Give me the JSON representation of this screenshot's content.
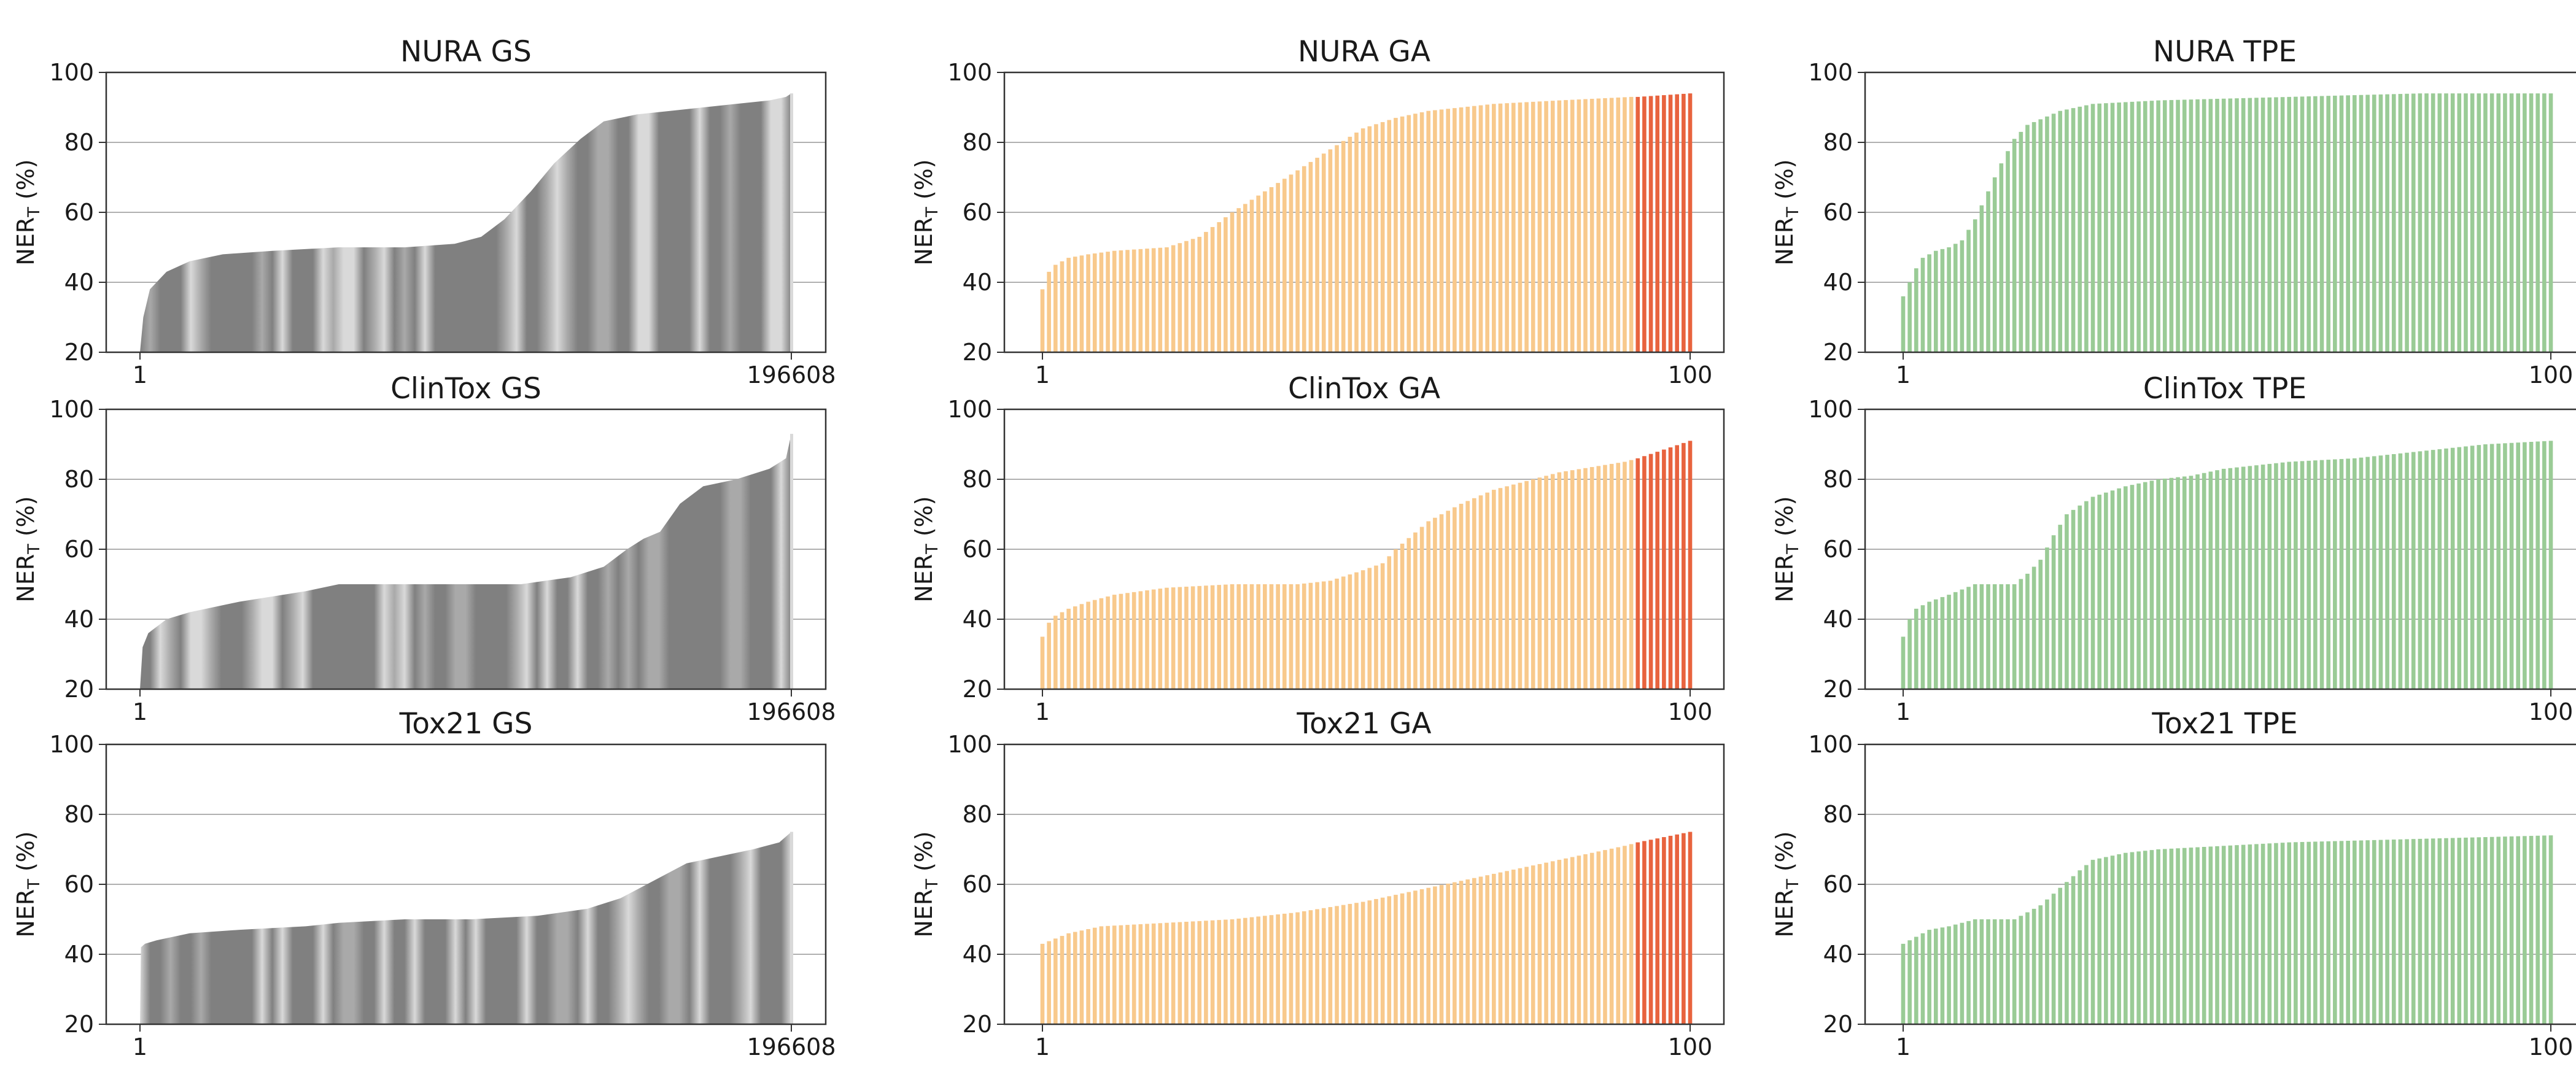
{
  "colors": {
    "gs_dark": "#808080",
    "gs_light": "#d9d9d9",
    "ga_main": "#f8c98c",
    "ga_top": "#e8633e",
    "tpe": "#9acb96",
    "grid": "#b0b0b0",
    "axis": "#333333"
  },
  "chart_data": [
    {
      "id": "nura-gs",
      "type": "area",
      "method": "GS",
      "title": "NURA GS",
      "ylabel": "NER_T (%)",
      "ylim": [
        20,
        100
      ],
      "yticks": [
        20,
        40,
        60,
        80,
        100
      ],
      "xlim": [
        1,
        196608
      ],
      "xtick_labels": [
        "1",
        "196608"
      ],
      "x": [
        1,
        1000,
        3000,
        8000,
        15000,
        25000,
        40000,
        60000,
        80000,
        95000,
        103000,
        110000,
        118000,
        125000,
        133000,
        140000,
        150000,
        160000,
        170000,
        180000,
        190000,
        195000,
        196608
      ],
      "values": [
        20,
        30,
        38,
        43,
        46,
        48,
        49,
        50,
        50,
        51,
        53,
        58,
        66,
        74,
        81,
        86,
        88,
        89,
        90,
        91,
        92,
        93,
        94
      ]
    },
    {
      "id": "nura-ga",
      "type": "bar",
      "method": "GA",
      "title": "NURA GA",
      "ylabel": "NER_T (%)",
      "ylim": [
        20,
        100
      ],
      "yticks": [
        20,
        40,
        60,
        80,
        100
      ],
      "n": 100,
      "highlight_from": 92,
      "xtick_labels": [
        "1",
        "100"
      ],
      "x": [
        1,
        2,
        3,
        5,
        8,
        12,
        20,
        25,
        30,
        35,
        40,
        45,
        50,
        55,
        60,
        65,
        70,
        80,
        91,
        92,
        100
      ],
      "values": [
        38,
        43,
        45,
        47,
        48,
        49,
        50,
        53,
        60,
        66,
        72,
        78,
        84,
        87,
        89,
        90,
        91,
        92,
        93,
        93,
        94
      ]
    },
    {
      "id": "nura-tpe",
      "type": "bar",
      "method": "TPE",
      "title": "NURA TPE",
      "ylabel": "NER_T (%)",
      "ylim": [
        20,
        100
      ],
      "yticks": [
        20,
        40,
        60,
        80,
        100
      ],
      "n": 100,
      "xtick_labels": [
        "1",
        "100"
      ],
      "x": [
        1,
        2,
        3,
        4,
        6,
        8,
        10,
        12,
        14,
        16,
        18,
        20,
        25,
        30,
        40,
        60,
        80,
        100
      ],
      "values": [
        36,
        40,
        44,
        47,
        49,
        50,
        52,
        58,
        66,
        74,
        81,
        85,
        89,
        91,
        92,
        93,
        94,
        94
      ]
    },
    {
      "id": "clintox-gs",
      "type": "area",
      "method": "GS",
      "title": "ClinTox GS",
      "ylabel": "NER_T (%)",
      "ylim": [
        20,
        100
      ],
      "yticks": [
        20,
        40,
        60,
        80,
        100
      ],
      "xlim": [
        1,
        196608
      ],
      "xtick_labels": [
        "1",
        "196608"
      ],
      "x": [
        1,
        800,
        2500,
        8000,
        15000,
        30000,
        50000,
        60000,
        90000,
        115000,
        130000,
        140000,
        147000,
        152000,
        157000,
        163000,
        170000,
        180000,
        190000,
        195000,
        196608
      ],
      "values": [
        20,
        32,
        36,
        40,
        42,
        45,
        48,
        50,
        50,
        50,
        52,
        55,
        60,
        63,
        65,
        73,
        78,
        80,
        83,
        86,
        93
      ]
    },
    {
      "id": "clintox-ga",
      "type": "bar",
      "method": "GA",
      "title": "ClinTox GA",
      "ylabel": "NER_T (%)",
      "ylim": [
        20,
        100
      ],
      "yticks": [
        20,
        40,
        60,
        80,
        100
      ],
      "n": 100,
      "highlight_from": 92,
      "xtick_labels": [
        "1",
        "100"
      ],
      "x": [
        1,
        2,
        3,
        5,
        8,
        12,
        20,
        30,
        40,
        45,
        50,
        53,
        55,
        60,
        65,
        70,
        80,
        90,
        92,
        100
      ],
      "values": [
        35,
        39,
        41,
        43,
        45,
        47,
        49,
        50,
        50,
        51,
        54,
        56,
        60,
        68,
        73,
        77,
        82,
        85,
        86,
        91
      ]
    },
    {
      "id": "clintox-tpe",
      "type": "bar",
      "method": "TPE",
      "title": "ClinTox TPE",
      "ylabel": "NER_T (%)",
      "ylim": [
        20,
        100
      ],
      "yticks": [
        20,
        40,
        60,
        80,
        100
      ],
      "n": 100,
      "xtick_labels": [
        "1",
        "100"
      ],
      "x": [
        1,
        2,
        3,
        5,
        8,
        12,
        18,
        20,
        22,
        24,
        26,
        30,
        35,
        40,
        45,
        50,
        60,
        70,
        80,
        90,
        100
      ],
      "values": [
        35,
        40,
        43,
        45,
        47,
        50,
        50,
        53,
        57,
        64,
        70,
        75,
        78,
        80,
        81,
        83,
        85,
        86,
        88,
        90,
        91
      ]
    },
    {
      "id": "tox21-gs",
      "type": "area",
      "method": "GS",
      "title": "Tox21 GS",
      "ylabel": "NER_T (%)",
      "ylim": [
        20,
        100
      ],
      "yticks": [
        20,
        40,
        60,
        80,
        100
      ],
      "xlim": [
        1,
        196608
      ],
      "xtick_labels": [
        "1",
        "196608"
      ],
      "x": [
        1,
        300,
        1500,
        5000,
        15000,
        30000,
        50000,
        60000,
        80000,
        100000,
        120000,
        135000,
        145000,
        155000,
        165000,
        175000,
        185000,
        193000,
        196608
      ],
      "values": [
        20,
        42,
        43,
        44,
        46,
        47,
        48,
        49,
        50,
        50,
        51,
        53,
        56,
        61,
        66,
        68,
        70,
        72,
        75
      ]
    },
    {
      "id": "tox21-ga",
      "type": "bar",
      "method": "GA",
      "title": "Tox21 GA",
      "ylabel": "NER_T (%)",
      "ylim": [
        20,
        100
      ],
      "yticks": [
        20,
        40,
        60,
        80,
        100
      ],
      "n": 100,
      "highlight_from": 92,
      "xtick_labels": [
        "1",
        "100"
      ],
      "x": [
        1,
        5,
        10,
        20,
        30,
        40,
        50,
        60,
        70,
        80,
        90,
        92,
        100
      ],
      "values": [
        43,
        46,
        48,
        49,
        50,
        52,
        55,
        59,
        63,
        67,
        71,
        72,
        75
      ]
    },
    {
      "id": "tox21-tpe",
      "type": "bar",
      "method": "TPE",
      "title": "Tox21 TPE",
      "ylabel": "NER_T (%)",
      "ylim": [
        20,
        100
      ],
      "yticks": [
        20,
        40,
        60,
        80,
        100
      ],
      "n": 100,
      "xtick_labels": [
        "1",
        "100"
      ],
      "x": [
        1,
        3,
        5,
        8,
        12,
        18,
        22,
        25,
        28,
        30,
        35,
        40,
        50,
        60,
        80,
        100
      ],
      "values": [
        43,
        45,
        47,
        48,
        50,
        50,
        54,
        59,
        64,
        67,
        69,
        70,
        71,
        72,
        73,
        74
      ]
    }
  ]
}
